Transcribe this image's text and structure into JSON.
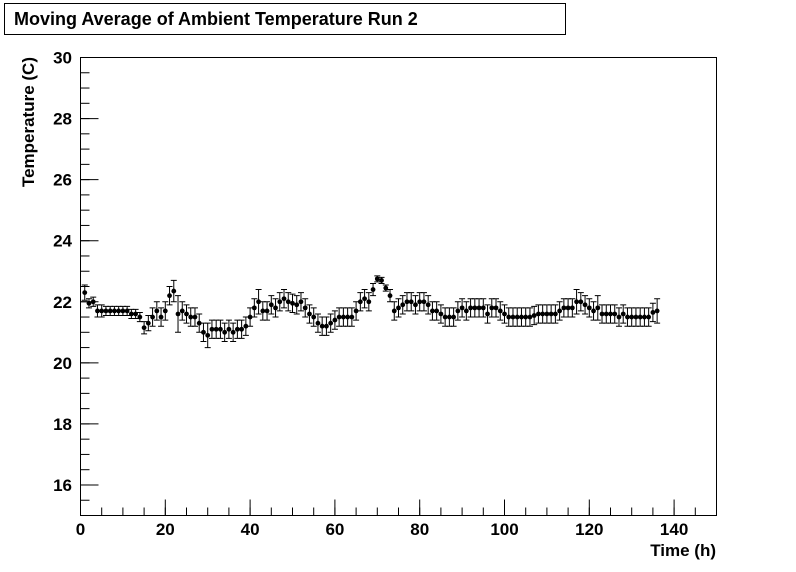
{
  "chart_data": {
    "type": "errorbar",
    "title": "Moving Average of Ambient Temperature Run 2",
    "xlabel": "Time (h)",
    "ylabel": "Temperature (C)",
    "xlim": [
      0,
      150
    ],
    "ylim": [
      15,
      30
    ],
    "xticks": [
      0,
      20,
      40,
      60,
      80,
      100,
      120,
      140
    ],
    "yticks": [
      16,
      18,
      20,
      22,
      24,
      26,
      28,
      30
    ],
    "xminor": 5,
    "yminor": 0.5,
    "color": "#000000",
    "x": [
      1,
      2,
      3,
      4,
      5,
      6,
      7,
      8,
      9,
      10,
      11,
      12,
      13,
      14,
      15,
      16,
      17,
      18,
      19,
      20,
      21,
      22,
      23,
      24,
      25,
      26,
      27,
      28,
      29,
      30,
      31,
      32,
      33,
      34,
      35,
      36,
      37,
      38,
      39,
      40,
      41,
      42,
      43,
      44,
      45,
      46,
      47,
      48,
      49,
      50,
      51,
      52,
      53,
      54,
      55,
      56,
      57,
      58,
      59,
      60,
      61,
      62,
      63,
      64,
      65,
      66,
      67,
      68,
      69,
      70,
      71,
      72,
      73,
      74,
      75,
      76,
      77,
      78,
      79,
      80,
      81,
      82,
      83,
      84,
      85,
      86,
      87,
      88,
      89,
      90,
      91,
      92,
      93,
      94,
      95,
      96,
      97,
      98,
      99,
      100,
      101,
      102,
      103,
      104,
      105,
      106,
      107,
      108,
      109,
      110,
      111,
      112,
      113,
      114,
      115,
      116,
      117,
      118,
      119,
      120,
      121,
      122,
      123,
      124,
      125,
      126,
      127,
      128,
      129,
      130,
      131,
      132,
      133,
      134,
      135,
      136
    ],
    "values": [
      22.3,
      21.95,
      22.0,
      21.7,
      21.7,
      21.7,
      21.7,
      21.7,
      21.7,
      21.7,
      21.7,
      21.6,
      21.6,
      21.5,
      21.15,
      21.3,
      21.5,
      21.7,
      21.5,
      21.7,
      22.2,
      22.35,
      21.6,
      21.7,
      21.6,
      21.5,
      21.5,
      21.3,
      21.0,
      20.9,
      21.1,
      21.1,
      21.1,
      21.0,
      21.1,
      21.0,
      21.1,
      21.1,
      21.2,
      21.5,
      21.8,
      22.0,
      21.7,
      21.7,
      21.9,
      21.8,
      22.0,
      22.1,
      22.0,
      21.95,
      21.9,
      22.0,
      21.8,
      21.6,
      21.5,
      21.3,
      21.2,
      21.2,
      21.3,
      21.4,
      21.5,
      21.5,
      21.5,
      21.5,
      21.7,
      22.0,
      22.1,
      22.0,
      22.4,
      22.75,
      22.7,
      22.45,
      22.2,
      21.7,
      21.8,
      21.9,
      22.0,
      22.0,
      21.9,
      22.0,
      22.0,
      21.9,
      21.7,
      21.7,
      21.6,
      21.5,
      21.5,
      21.5,
      21.7,
      21.8,
      21.7,
      21.8,
      21.8,
      21.8,
      21.8,
      21.6,
      21.8,
      21.8,
      21.7,
      21.6,
      21.5,
      21.5,
      21.5,
      21.5,
      21.5,
      21.5,
      21.55,
      21.6,
      21.6,
      21.6,
      21.6,
      21.6,
      21.7,
      21.8,
      21.8,
      21.8,
      22.0,
      22.0,
      21.9,
      21.8,
      21.7,
      21.8,
      21.6,
      21.6,
      21.6,
      21.6,
      21.5,
      21.6,
      21.5,
      21.5,
      21.5,
      21.5,
      21.5,
      21.5,
      21.65,
      21.7
    ],
    "errors": [
      0.25,
      0.15,
      0.15,
      0.2,
      0.2,
      0.15,
      0.15,
      0.15,
      0.15,
      0.15,
      0.15,
      0.15,
      0.15,
      0.15,
      0.2,
      0.25,
      0.3,
      0.3,
      0.3,
      0.3,
      0.3,
      0.35,
      0.6,
      0.3,
      0.3,
      0.3,
      0.3,
      0.3,
      0.3,
      0.4,
      0.3,
      0.3,
      0.3,
      0.3,
      0.3,
      0.3,
      0.3,
      0.3,
      0.3,
      0.3,
      0.3,
      0.4,
      0.3,
      0.3,
      0.3,
      0.3,
      0.3,
      0.3,
      0.3,
      0.3,
      0.3,
      0.3,
      0.3,
      0.3,
      0.3,
      0.3,
      0.3,
      0.3,
      0.3,
      0.3,
      0.3,
      0.3,
      0.3,
      0.3,
      0.3,
      0.3,
      0.3,
      0.3,
      0.2,
      0.1,
      0.1,
      0.1,
      0.2,
      0.3,
      0.3,
      0.3,
      0.3,
      0.3,
      0.3,
      0.3,
      0.3,
      0.3,
      0.3,
      0.3,
      0.3,
      0.3,
      0.3,
      0.3,
      0.3,
      0.3,
      0.3,
      0.3,
      0.3,
      0.3,
      0.3,
      0.3,
      0.3,
      0.3,
      0.3,
      0.3,
      0.3,
      0.3,
      0.3,
      0.3,
      0.3,
      0.3,
      0.3,
      0.3,
      0.3,
      0.3,
      0.3,
      0.3,
      0.3,
      0.3,
      0.3,
      0.3,
      0.4,
      0.3,
      0.3,
      0.3,
      0.3,
      0.4,
      0.3,
      0.3,
      0.3,
      0.3,
      0.3,
      0.3,
      0.3,
      0.3,
      0.3,
      0.3,
      0.3,
      0.3,
      0.3,
      0.4
    ]
  }
}
